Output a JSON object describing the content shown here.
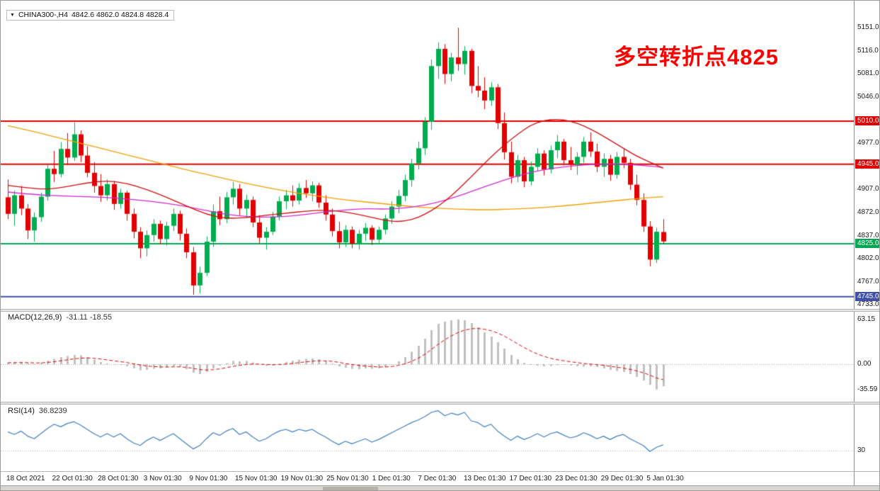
{
  "symbol_bar": {
    "symbol": "CHINA300-,H4",
    "ohlc": "4842.6 4862.0 4824.8 4828.4"
  },
  "annotation": {
    "text": "多空转折点4825",
    "color": "#ff0000"
  },
  "indicators": {
    "macd": {
      "label": "MACD(12,26,9)",
      "values": "-31.11 -18.55",
      "axis_labels": [
        "63.15",
        "0.00",
        "-35.59"
      ]
    },
    "rsi": {
      "label": "RSI(14)",
      "value": "36.8239",
      "axis_labels": [
        "30"
      ]
    }
  },
  "price_axis": {
    "labels": [
      "5151.0",
      "5116.0",
      "5081.0",
      "5046.0",
      "4977.0",
      "4907.0",
      "4872.0",
      "4837.0",
      "4802.0",
      "4767.0",
      "4733.0"
    ]
  },
  "time_axis": {
    "labels": [
      "18 Oct 2021",
      "22 Oct 01:30",
      "28 Oct 01:30",
      "3 Nov 01:30",
      "9 Nov 01:30",
      "15 Nov 01:30",
      "19 Nov 01:30",
      "25 Nov 01:30",
      "1 Dec 01:30",
      "7 Dec 01:30",
      "13 Dec 01:30",
      "17 Dec 01:30",
      "23 Dec 01:30",
      "29 Dec 01:30",
      "5 Jan 01:30"
    ]
  },
  "chart_data": {
    "type": "candlestick",
    "symbol": "CHINA300-",
    "timeframe": "H4",
    "up_color": "#00ad4e",
    "down_color": "#e30000",
    "y_axis": {
      "min": 4733,
      "max": 5151
    },
    "levels": [
      {
        "text": "5010.0",
        "value": 5010.0,
        "color": "#e00000"
      },
      {
        "text": "4945.0",
        "value": 4945.0,
        "color": "#e00000"
      },
      {
        "text": "4825.0",
        "value": 4825.0,
        "color": "#00a651"
      },
      {
        "text": "4745.0",
        "value": 4745.0,
        "color": "#4050a8"
      }
    ],
    "ohlc": [
      [
        4895,
        4922,
        4862,
        4870
      ],
      [
        4870,
        4905,
        4852,
        4898
      ],
      [
        4898,
        4912,
        4868,
        4878
      ],
      [
        4878,
        4885,
        4832,
        4845
      ],
      [
        4845,
        4872,
        4828,
        4865
      ],
      [
        4865,
        4902,
        4858,
        4896
      ],
      [
        4896,
        4945,
        4890,
        4938
      ],
      [
        4938,
        4965,
        4918,
        4930
      ],
      [
        4930,
        4978,
        4925,
        4968
      ],
      [
        4968,
        4992,
        4944,
        4955
      ],
      [
        4955,
        5008,
        4950,
        4990
      ],
      [
        4990,
        4996,
        4948,
        4958
      ],
      [
        4958,
        4972,
        4925,
        4932
      ],
      [
        4932,
        4948,
        4902,
        4912
      ],
      [
        4912,
        4930,
        4888,
        4898
      ],
      [
        4898,
        4922,
        4890,
        4915
      ],
      [
        4915,
        4920,
        4876,
        4885
      ],
      [
        4885,
        4908,
        4878,
        4902
      ],
      [
        4902,
        4905,
        4860,
        4870
      ],
      [
        4870,
        4878,
        4833,
        4843
      ],
      [
        4843,
        4850,
        4803,
        4818
      ],
      [
        4818,
        4845,
        4806,
        4838
      ],
      [
        4838,
        4862,
        4828,
        4855
      ],
      [
        4855,
        4860,
        4824,
        4832
      ],
      [
        4832,
        4858,
        4822,
        4852
      ],
      [
        4852,
        4878,
        4844,
        4870
      ],
      [
        4870,
        4875,
        4830,
        4840
      ],
      [
        4840,
        4848,
        4803,
        4812
      ],
      [
        4812,
        4820,
        4748,
        4762
      ],
      [
        4762,
        4790,
        4750,
        4781
      ],
      [
        4781,
        4836,
        4776,
        4828
      ],
      [
        4828,
        4884,
        4820,
        4874
      ],
      [
        4874,
        4896,
        4853,
        4862
      ],
      [
        4862,
        4903,
        4856,
        4895
      ],
      [
        4895,
        4918,
        4884,
        4908
      ],
      [
        4908,
        4915,
        4868,
        4878
      ],
      [
        4878,
        4899,
        4864,
        4891
      ],
      [
        4891,
        4896,
        4850,
        4857
      ],
      [
        4857,
        4868,
        4826,
        4834
      ],
      [
        4834,
        4850,
        4816,
        4843
      ],
      [
        4843,
        4873,
        4838,
        4866
      ],
      [
        4866,
        4896,
        4860,
        4889
      ],
      [
        4889,
        4906,
        4877,
        4898
      ],
      [
        4898,
        4913,
        4881,
        4890
      ],
      [
        4890,
        4916,
        4884,
        4909
      ],
      [
        4909,
        4921,
        4894,
        4901
      ],
      [
        4901,
        4919,
        4889,
        4913
      ],
      [
        4913,
        4917,
        4879,
        4887
      ],
      [
        4887,
        4898,
        4860,
        4869
      ],
      [
        4869,
        4878,
        4836,
        4844
      ],
      [
        4844,
        4858,
        4818,
        4827
      ],
      [
        4827,
        4853,
        4820,
        4846
      ],
      [
        4846,
        4851,
        4818,
        4825
      ],
      [
        4825,
        4846,
        4816,
        4840
      ],
      [
        4840,
        4856,
        4829,
        4849
      ],
      [
        4849,
        4853,
        4823,
        4831
      ],
      [
        4831,
        4851,
        4826,
        4846
      ],
      [
        4846,
        4869,
        4839,
        4863
      ],
      [
        4863,
        4889,
        4855,
        4881
      ],
      [
        4881,
        4906,
        4871,
        4897
      ],
      [
        4897,
        4929,
        4889,
        4921
      ],
      [
        4921,
        4953,
        4911,
        4946
      ],
      [
        4946,
        4979,
        4937,
        4969
      ],
      [
        4969,
        5016,
        4959,
        5009
      ],
      [
        5009,
        5103,
        4997,
        5093
      ],
      [
        5093,
        5129,
        5074,
        5119
      ],
      [
        5119,
        5126,
        5066,
        5081
      ],
      [
        5081,
        5113,
        5070,
        5106
      ],
      [
        5106,
        5151,
        5086,
        5096
      ],
      [
        5096,
        5123,
        5080,
        5116
      ],
      [
        5116,
        5119,
        5052,
        5063
      ],
      [
        5063,
        5093,
        5046,
        5056
      ],
      [
        5056,
        5076,
        5028,
        5041
      ],
      [
        5041,
        5069,
        5033,
        5061
      ],
      [
        5061,
        5066,
        4998,
        5007
      ],
      [
        5007,
        5023,
        4952,
        4963
      ],
      [
        4963,
        4979,
        4916,
        4926
      ],
      [
        4926,
        4959,
        4918,
        4951
      ],
      [
        4951,
        4956,
        4910,
        4919
      ],
      [
        4919,
        4949,
        4913,
        4941
      ],
      [
        4941,
        4969,
        4934,
        4961
      ],
      [
        4961,
        4966,
        4928,
        4937
      ],
      [
        4937,
        4973,
        4931,
        4966
      ],
      [
        4966,
        4989,
        4954,
        4979
      ],
      [
        4979,
        4983,
        4943,
        4951
      ],
      [
        4951,
        4971,
        4936,
        4944
      ],
      [
        4944,
        4963,
        4929,
        4956
      ],
      [
        4956,
        4986,
        4947,
        4979
      ],
      [
        4979,
        4993,
        4956,
        4964
      ],
      [
        4964,
        4976,
        4933,
        4941
      ],
      [
        4941,
        4961,
        4926,
        4953
      ],
      [
        4953,
        4959,
        4920,
        4929
      ],
      [
        4929,
        4963,
        4923,
        4956
      ],
      [
        4956,
        4969,
        4939,
        4947
      ],
      [
        4947,
        4953,
        4906,
        4914
      ],
      [
        4914,
        4929,
        4883,
        4891
      ],
      [
        4891,
        4901,
        4843,
        4851
      ],
      [
        4851,
        4859,
        4791,
        4801
      ],
      [
        4801,
        4849,
        4796,
        4843
      ],
      [
        4842.6,
        4862.0,
        4824.8,
        4828.4
      ]
    ],
    "moving_averages": [
      {
        "name": "ma-slow",
        "color": "#f0a000",
        "points": [
          [
            0,
            5003
          ],
          [
            4,
            4994
          ],
          [
            8,
            4984
          ],
          [
            12,
            4974
          ],
          [
            16,
            4964
          ],
          [
            20,
            4954
          ],
          [
            24,
            4944
          ],
          [
            28,
            4934
          ],
          [
            32,
            4925
          ],
          [
            36,
            4916
          ],
          [
            40,
            4908
          ],
          [
            44,
            4901
          ],
          [
            48,
            4895
          ],
          [
            52,
            4890
          ],
          [
            56,
            4886
          ],
          [
            60,
            4882
          ],
          [
            64,
            4879
          ],
          [
            68,
            4877
          ],
          [
            72,
            4876
          ],
          [
            76,
            4877
          ],
          [
            80,
            4879
          ],
          [
            84,
            4882
          ],
          [
            88,
            4886
          ],
          [
            92,
            4890
          ],
          [
            95,
            4893
          ],
          [
            99,
            4896
          ]
        ]
      },
      {
        "name": "ma-mid",
        "color": "#d02ad0",
        "points": [
          [
            0,
            4903
          ],
          [
            4,
            4899
          ],
          [
            8,
            4897
          ],
          [
            12,
            4896
          ],
          [
            16,
            4894
          ],
          [
            20,
            4891
          ],
          [
            24,
            4886
          ],
          [
            27,
            4881
          ],
          [
            30,
            4875
          ],
          [
            33,
            4869
          ],
          [
            36,
            4866
          ],
          [
            39,
            4865
          ],
          [
            42,
            4866
          ],
          [
            45,
            4869
          ],
          [
            48,
            4873
          ],
          [
            51,
            4876
          ],
          [
            54,
            4878
          ],
          [
            57,
            4877
          ],
          [
            60,
            4879
          ],
          [
            63,
            4883
          ],
          [
            66,
            4890
          ],
          [
            69,
            4900
          ],
          [
            72,
            4911
          ],
          [
            75,
            4921
          ],
          [
            78,
            4930
          ],
          [
            81,
            4937
          ],
          [
            84,
            4941
          ],
          [
            87,
            4944
          ],
          [
            90,
            4945
          ],
          [
            93,
            4945
          ],
          [
            96,
            4943
          ],
          [
            99,
            4940
          ]
        ]
      },
      {
        "name": "ma-fast",
        "color": "#d01010",
        "points": [
          [
            0,
            4913
          ],
          [
            3,
            4909
          ],
          [
            6,
            4907
          ],
          [
            9,
            4911
          ],
          [
            12,
            4917
          ],
          [
            15,
            4920
          ],
          [
            18,
            4916
          ],
          [
            21,
            4907
          ],
          [
            24,
            4895
          ],
          [
            27,
            4882
          ],
          [
            30,
            4869
          ],
          [
            33,
            4863
          ],
          [
            36,
            4864
          ],
          [
            39,
            4868
          ],
          [
            42,
            4871
          ],
          [
            45,
            4874
          ],
          [
            48,
            4876
          ],
          [
            51,
            4873
          ],
          [
            54,
            4867
          ],
          [
            57,
            4860
          ],
          [
            59,
            4858
          ],
          [
            61,
            4861
          ],
          [
            63,
            4869
          ],
          [
            65,
            4881
          ],
          [
            67,
            4897
          ],
          [
            69,
            4916
          ],
          [
            71,
            4936
          ],
          [
            73,
            4956
          ],
          [
            75,
            4974
          ],
          [
            77,
            4990
          ],
          [
            79,
            5004
          ],
          [
            81,
            5011
          ],
          [
            83,
            5013
          ],
          [
            85,
            5010
          ],
          [
            87,
            5003
          ],
          [
            89,
            4993
          ],
          [
            91,
            4981
          ],
          [
            93,
            4969
          ],
          [
            95,
            4957
          ],
          [
            97,
            4948
          ],
          [
            99,
            4939
          ]
        ]
      }
    ],
    "macd": {
      "histogram_color": "#c0c0c0",
      "signal_color": "#e00000",
      "signal_period": 9,
      "main": [
        2,
        2.5,
        3,
        1.5,
        0.5,
        2,
        5,
        7.5,
        10,
        11.5,
        13,
        12.5,
        10,
        6.5,
        3,
        1,
        -0.5,
        -1,
        -3,
        -6,
        -8.5,
        -8,
        -6.5,
        -6,
        -4.5,
        -3,
        -4,
        -7,
        -12,
        -14,
        -11,
        -6,
        -2,
        1.5,
        4.5,
        4,
        4.5,
        2.5,
        -0.5,
        -2.5,
        -2,
        0.5,
        3,
        5,
        6.5,
        7.5,
        8,
        7,
        4.5,
        1,
        -3,
        -5,
        -6.5,
        -7,
        -6,
        -6.5,
        -6,
        -4,
        -0.5,
        4,
        10,
        17.5,
        26,
        36,
        48,
        57,
        60,
        62,
        63.15,
        62,
        58,
        52,
        45,
        39,
        31,
        22,
        13,
        7,
        2,
        -1,
        -2,
        -3,
        -2.5,
        -1.5,
        -1,
        -2,
        -3,
        -3.5,
        -3,
        -4,
        -6,
        -8,
        -9.5,
        -11,
        -14,
        -18,
        -23,
        -29,
        -35.59,
        -31.11
      ]
    },
    "rsi": {
      "line_color": "#3e7fc1",
      "levels": [
        30
      ],
      "values": [
        52,
        49,
        53,
        47,
        44,
        50,
        56,
        61,
        58,
        62,
        64,
        60,
        55,
        50,
        46,
        50,
        46,
        50,
        44,
        39,
        36,
        42,
        46,
        42,
        46,
        50,
        44,
        38,
        32,
        36,
        44,
        51,
        48,
        53,
        56,
        49,
        52,
        46,
        41,
        44,
        49,
        53,
        55,
        52,
        55,
        53,
        55,
        50,
        46,
        41,
        37,
        41,
        38,
        41,
        44,
        40,
        43,
        47,
        51,
        55,
        59,
        63,
        66,
        70,
        75,
        77,
        71,
        74,
        72,
        75,
        65,
        63,
        58,
        61,
        53,
        47,
        42,
        47,
        43,
        46,
        50,
        46,
        50,
        52,
        48,
        45,
        47,
        51,
        48,
        44,
        47,
        43,
        47,
        49,
        44,
        40,
        36,
        29,
        34,
        36.82
      ]
    }
  }
}
